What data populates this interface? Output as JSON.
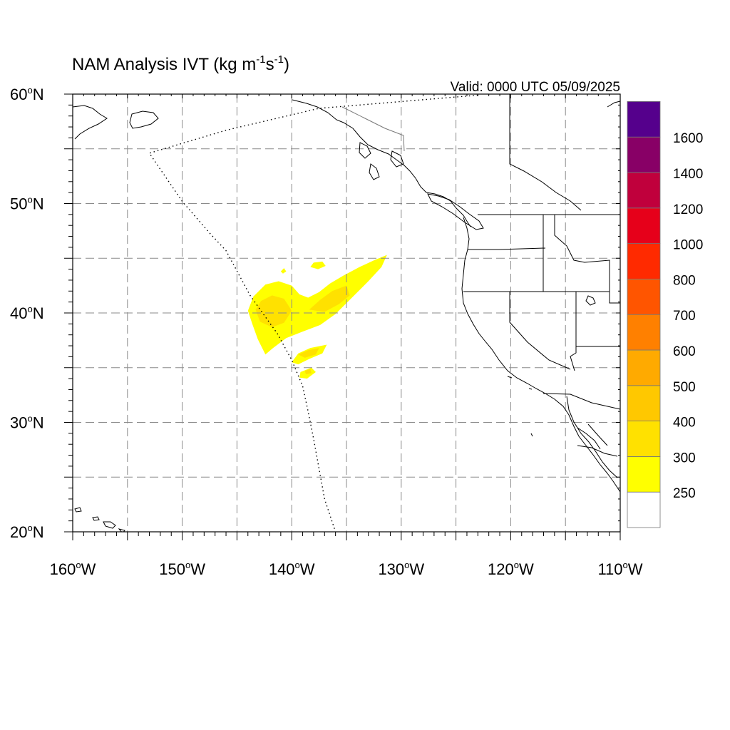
{
  "title": {
    "main": "NAM Analysis IVT (kg m",
    "exp1": "-1",
    "mid": "s",
    "exp2": "-1",
    "close": ")"
  },
  "valid_label": "Valid: 0000 UTC 05/09/2025",
  "map": {
    "projection": "cylindrical-equidistant",
    "lon_range": [
      -160,
      -110
    ],
    "lat_range": [
      20,
      60
    ],
    "lat_ticks": [
      {
        "value": 60,
        "num": "60",
        "deg": "o",
        "hem": "N"
      },
      {
        "value": 50,
        "num": "50",
        "deg": "o",
        "hem": "N"
      },
      {
        "value": 40,
        "num": "40",
        "deg": "o",
        "hem": "N"
      },
      {
        "value": 30,
        "num": "30",
        "deg": "o",
        "hem": "N"
      },
      {
        "value": 20,
        "num": "20",
        "deg": "o",
        "hem": "N"
      }
    ],
    "lon_ticks": [
      {
        "value": -160,
        "num": "160",
        "deg": "o",
        "hem": "W"
      },
      {
        "value": -150,
        "num": "150",
        "deg": "o",
        "hem": "W"
      },
      {
        "value": -140,
        "num": "140",
        "deg": "o",
        "hem": "W"
      },
      {
        "value": -130,
        "num": "130",
        "deg": "o",
        "hem": "W"
      },
      {
        "value": -120,
        "num": "120",
        "deg": "o",
        "hem": "W"
      },
      {
        "value": -110,
        "num": "110",
        "deg": "o",
        "hem": "W"
      }
    ],
    "grid_lons": [
      -155,
      -150,
      -145,
      -140,
      -135,
      -130,
      -125,
      -120,
      -115
    ],
    "grid_lats": [
      25,
      30,
      35,
      40,
      45,
      50,
      55
    ],
    "grid": "dashed"
  },
  "colorbar": {
    "orientation": "vertical",
    "placement": "right",
    "labels": [
      "250",
      "300",
      "400",
      "500",
      "600",
      "700",
      "800",
      "1000",
      "1200",
      "1400",
      "1600"
    ],
    "colors": [
      "#ffffff",
      "#ffff00",
      "#ffe100",
      "#ffc800",
      "#ffaa00",
      "#ff8000",
      "#ff5500",
      "#ff2a00",
      "#e6001a",
      "#c0003c",
      "#880066",
      "#55008c"
    ]
  },
  "chart_data": {
    "type": "heatmap",
    "variable": "IVT",
    "units": "kg m-1 s-1",
    "levels": [
      250,
      300,
      400,
      500,
      600,
      700,
      800,
      1000,
      1200,
      1400,
      1600
    ],
    "ivt_regions": [
      {
        "level": 250,
        "color": "#ffff00",
        "polygon": [
          [
            -144.0,
            40.2
          ],
          [
            -143.5,
            41.5
          ],
          [
            -142.4,
            42.6
          ],
          [
            -141.2,
            42.9
          ],
          [
            -140.0,
            42.5
          ],
          [
            -139.3,
            41.7
          ],
          [
            -138.5,
            41.4
          ],
          [
            -137.5,
            41.9
          ],
          [
            -136.5,
            42.7
          ],
          [
            -135.3,
            43.4
          ],
          [
            -133.8,
            44.2
          ],
          [
            -132.5,
            44.8
          ],
          [
            -131.3,
            45.3
          ],
          [
            -131.8,
            44.2
          ],
          [
            -133.0,
            42.9
          ],
          [
            -134.5,
            41.4
          ],
          [
            -136.0,
            39.9
          ],
          [
            -137.4,
            38.9
          ],
          [
            -139.0,
            38.3
          ],
          [
            -140.5,
            37.7
          ],
          [
            -141.7,
            36.8
          ],
          [
            -142.4,
            36.2
          ],
          [
            -143.1,
            37.6
          ],
          [
            -143.6,
            39.0
          ]
        ]
      },
      {
        "level": 250,
        "color": "#ffff00",
        "polygon": [
          [
            -141.0,
            43.8
          ],
          [
            -140.7,
            44.1
          ],
          [
            -140.5,
            43.8
          ],
          [
            -140.8,
            43.6
          ]
        ]
      },
      {
        "level": 250,
        "color": "#ffff00",
        "polygon": [
          [
            -138.0,
            44.6
          ],
          [
            -137.2,
            44.7
          ],
          [
            -136.9,
            44.3
          ],
          [
            -137.6,
            44.0
          ],
          [
            -138.3,
            44.2
          ]
        ]
      },
      {
        "level": 250,
        "color": "#ffff00",
        "polygon": [
          [
            -140.0,
            35.5
          ],
          [
            -139.4,
            36.3
          ],
          [
            -138.3,
            36.8
          ],
          [
            -136.8,
            37.1
          ],
          [
            -137.2,
            36.3
          ],
          [
            -138.4,
            35.8
          ],
          [
            -139.4,
            35.3
          ]
        ]
      },
      {
        "level": 250,
        "color": "#ffff00",
        "polygon": [
          [
            -139.2,
            34.6
          ],
          [
            -138.2,
            35.0
          ],
          [
            -137.8,
            34.6
          ],
          [
            -138.6,
            34.0
          ],
          [
            -139.3,
            34.1
          ]
        ]
      },
      {
        "level": 300,
        "color": "#ffe100",
        "polygon": [
          [
            -143.3,
            40.3
          ],
          [
            -142.8,
            41.1
          ],
          [
            -141.8,
            41.6
          ],
          [
            -140.7,
            41.3
          ],
          [
            -140.0,
            40.2
          ],
          [
            -140.7,
            39.1
          ],
          [
            -141.8,
            38.7
          ],
          [
            -142.9,
            39.2
          ]
        ]
      },
      {
        "level": 300,
        "color": "#ffe100",
        "polygon": [
          [
            -138.4,
            40.3
          ],
          [
            -137.4,
            41.2
          ],
          [
            -136.3,
            42.0
          ],
          [
            -135.0,
            42.5
          ],
          [
            -134.7,
            41.6
          ],
          [
            -135.7,
            40.8
          ],
          [
            -137.0,
            40.1
          ]
        ]
      },
      {
        "level": 300,
        "color": "#ffe100",
        "polygon": [
          [
            -139.4,
            36.2
          ],
          [
            -138.5,
            36.6
          ],
          [
            -137.5,
            36.8
          ],
          [
            -137.8,
            36.2
          ],
          [
            -138.8,
            35.9
          ]
        ]
      },
      {
        "level": 300,
        "color": "#ffe100",
        "polygon": [
          [
            -138.8,
            34.7
          ],
          [
            -138.3,
            34.9
          ],
          [
            -138.2,
            34.5
          ],
          [
            -138.7,
            34.4
          ]
        ]
      }
    ],
    "boundary_line": {
      "style": "dotted",
      "points": [
        [
          -123.0,
          59.9
        ],
        [
          -137.5,
          58.7
        ],
        [
          -146.0,
          56.7
        ],
        [
          -153.0,
          54.6
        ],
        [
          -150.0,
          50.2
        ],
        [
          -147.5,
          47.3
        ],
        [
          -146.0,
          45.7
        ],
        [
          -143.8,
          41.6
        ],
        [
          -141.3,
          38.1
        ],
        [
          -140.0,
          35.7
        ],
        [
          -139.0,
          33.3
        ],
        [
          -138.5,
          31.0
        ],
        [
          -138.0,
          28.5
        ],
        [
          -137.0,
          23.0
        ],
        [
          -136.0,
          20.0
        ]
      ]
    }
  }
}
